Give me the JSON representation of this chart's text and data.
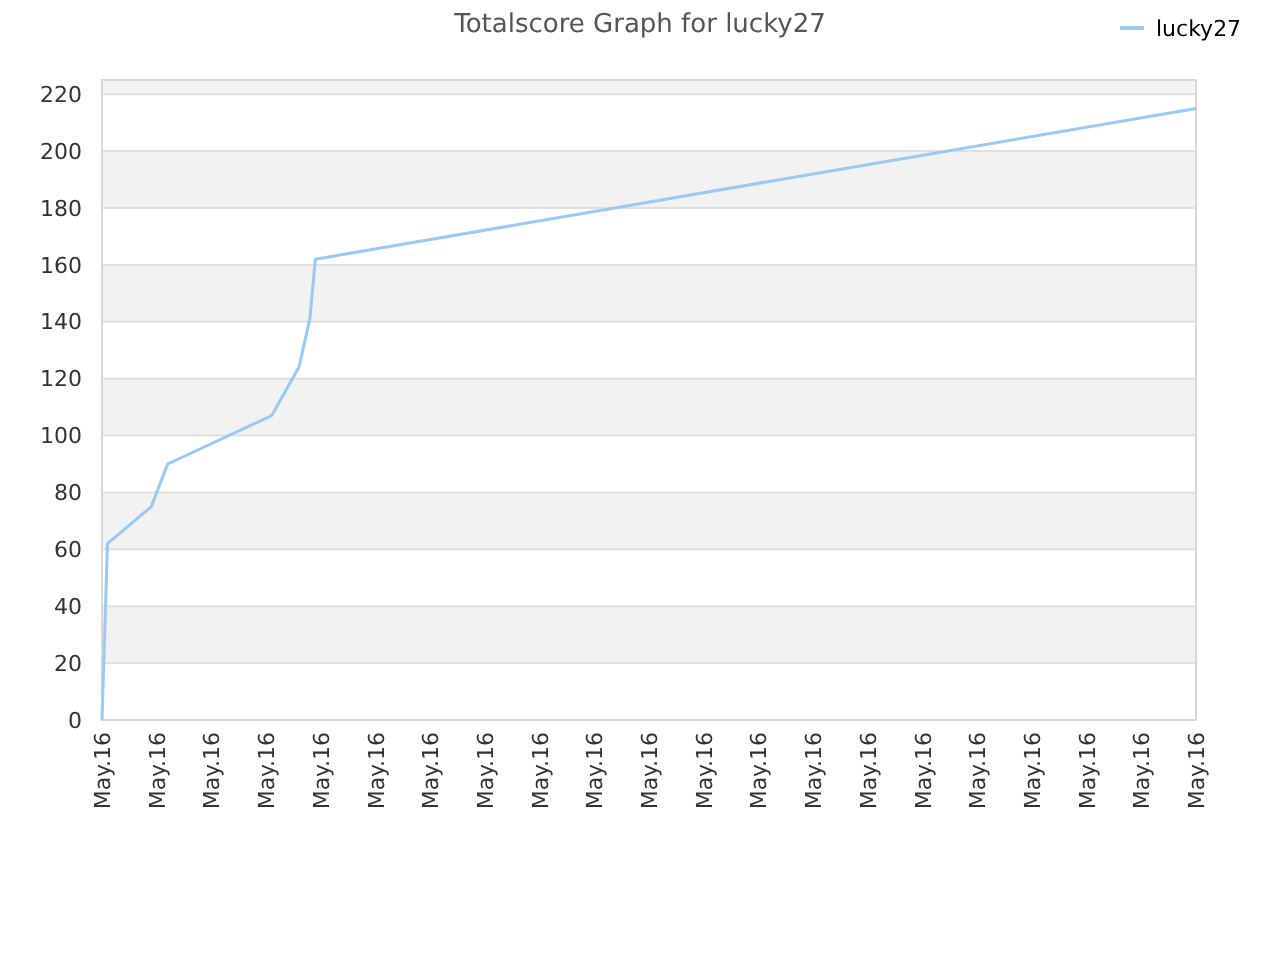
{
  "chart_data": {
    "type": "line",
    "title": "Totalscore Graph for lucky27",
    "categories": [
      "May.16",
      null,
      null,
      null,
      null,
      null,
      null,
      null,
      null,
      null,
      "May.16",
      null,
      null,
      null,
      null,
      null,
      null,
      null,
      null,
      null,
      "May.16",
      null,
      null,
      null,
      null,
      null,
      null,
      null,
      null,
      null,
      "May.16",
      null,
      null,
      null,
      null,
      null,
      null,
      null,
      null,
      null,
      "May.16",
      null,
      null,
      null,
      null,
      null,
      null,
      null,
      null,
      null,
      "May.16",
      null,
      null,
      null,
      null,
      null,
      null,
      null,
      null,
      null,
      "May.16",
      null,
      null,
      null,
      null,
      null,
      null,
      null,
      null,
      null,
      "May.16",
      null,
      null,
      null,
      null,
      null,
      null,
      null,
      null,
      null,
      "May.16",
      null,
      null,
      null,
      null,
      null,
      null,
      null,
      null,
      null,
      "May.16",
      null,
      null,
      null,
      null,
      null,
      null,
      null,
      null,
      null,
      "May.16",
      null,
      null,
      null,
      null,
      null,
      null,
      null,
      null,
      null,
      "May.16",
      null,
      null,
      null,
      null,
      null,
      null,
      null,
      null,
      null,
      "May.16",
      null,
      null,
      null,
      null,
      null,
      null,
      null,
      null,
      null,
      "May.16",
      null,
      null,
      null,
      null,
      null,
      null,
      null,
      null,
      null,
      "May.16",
      null,
      null,
      null,
      null,
      null,
      null,
      null,
      null,
      null,
      "May.16",
      null,
      null,
      null,
      null,
      null,
      null,
      null,
      null,
      null,
      "May.16",
      null,
      null,
      null,
      null,
      null,
      null,
      null,
      null,
      null,
      "May.16",
      null,
      null,
      null,
      null,
      null,
      null,
      null,
      null,
      null,
      "May.16",
      null,
      null,
      null,
      null,
      null,
      null,
      null,
      null,
      null,
      "May.16",
      null,
      null,
      null,
      null,
      null,
      null,
      null,
      null,
      null,
      "May.16"
    ],
    "ylim": [
      0,
      225
    ],
    "yticks": [
      0,
      20,
      40,
      60,
      80,
      100,
      120,
      140,
      160,
      180,
      200,
      220
    ],
    "grid": "y",
    "legend": "top right",
    "marker": "none",
    "line_style": "solid",
    "series": [
      {
        "name": "lucky27",
        "color": "#99c9f5",
        "values": [
          0,
          62,
          null,
          null,
          null,
          null,
          null,
          null,
          null,
          75,
          null,
          null,
          90,
          null,
          null,
          null,
          null,
          null,
          null,
          null,
          null,
          null,
          null,
          null,
          null,
          null,
          null,
          null,
          null,
          null,
          null,
          107,
          null,
          null,
          null,
          null,
          124,
          null,
          141,
          162,
          null,
          null,
          null,
          null,
          null,
          null,
          null,
          null,
          null,
          null,
          null,
          null,
          null,
          null,
          null,
          null,
          null,
          null,
          null,
          null,
          null,
          null,
          null,
          null,
          null,
          null,
          null,
          null,
          null,
          null,
          null,
          null,
          null,
          null,
          null,
          null,
          null,
          null,
          null,
          null,
          null,
          null,
          null,
          null,
          null,
          null,
          null,
          null,
          null,
          null,
          null,
          null,
          null,
          null,
          null,
          null,
          null,
          null,
          null,
          null,
          null,
          null,
          null,
          null,
          null,
          null,
          null,
          null,
          null,
          null,
          null,
          null,
          null,
          null,
          null,
          null,
          null,
          null,
          null,
          null,
          null,
          null,
          null,
          null,
          null,
          null,
          null,
          null,
          null,
          null,
          null,
          null,
          null,
          null,
          null,
          null,
          null,
          null,
          null,
          null,
          null,
          null,
          null,
          null,
          null,
          null,
          null,
          null,
          null,
          null,
          null,
          null,
          null,
          null,
          null,
          null,
          null,
          null,
          null,
          null,
          null,
          null,
          null,
          null,
          null,
          null,
          null,
          null,
          null,
          null,
          null,
          null,
          null,
          null,
          null,
          null,
          null,
          null,
          null,
          null,
          null,
          null,
          null,
          null,
          null,
          null,
          null,
          null,
          null,
          null,
          null,
          null,
          null,
          null,
          null,
          null,
          null,
          null,
          null,
          null,
          215
        ]
      }
    ]
  }
}
